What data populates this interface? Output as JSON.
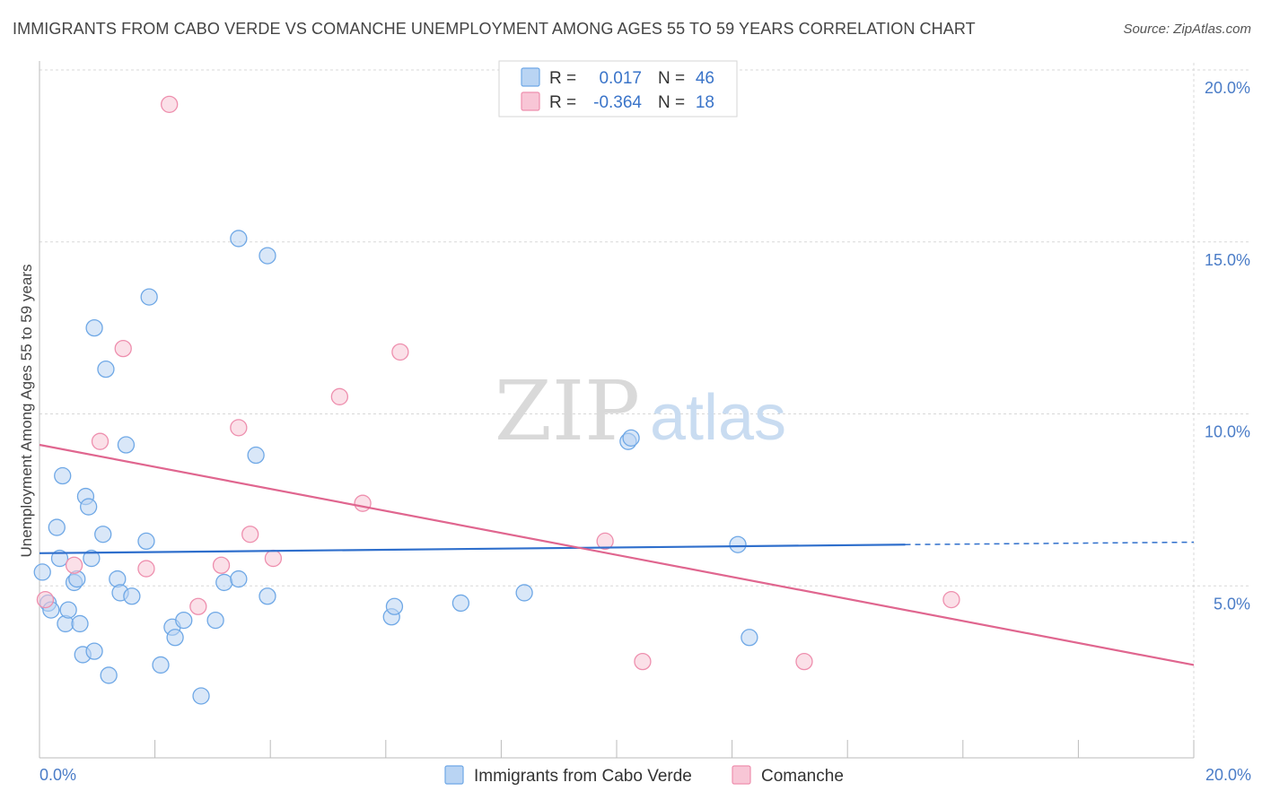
{
  "header": {
    "title": "IMMIGRANTS FROM CABO VERDE VS COMANCHE UNEMPLOYMENT AMONG AGES 55 TO 59 YEARS CORRELATION CHART",
    "source": "Source: ZipAtlas.com"
  },
  "colors": {
    "blue": "#6fa8e6",
    "blue_fill": "#b9d4f3",
    "blue_line": "#2f6fcc",
    "pink": "#ee8fae",
    "pink_fill": "#f8c6d6",
    "pink_line": "#e0668f",
    "tick": "#4a7cc7",
    "grid": "#d8d8d8"
  },
  "legend": {
    "r_label": "R =",
    "n_label": "N =",
    "series": [
      {
        "r": "0.017",
        "n": "46"
      },
      {
        "r": "-0.364",
        "n": "18"
      }
    ]
  },
  "watermark": {
    "zip": "ZIP",
    "atlas": "atlas"
  },
  "chart_data": {
    "type": "scatter",
    "title": "IMMIGRANTS FROM CABO VERDE VS COMANCHE UNEMPLOYMENT AMONG AGES 55 TO 59 YEARS CORRELATION CHART",
    "xlabel": "",
    "ylabel": "Unemployment Among Ages 55 to 59 years",
    "xlim": [
      0,
      20
    ],
    "ylim": [
      0,
      20
    ],
    "x_tick_labels": {
      "min": "0.0%",
      "max": "20.0%"
    },
    "y_ticks": [
      {
        "value": 5,
        "label": "5.0%"
      },
      {
        "value": 10,
        "label": "10.0%"
      },
      {
        "value": 15,
        "label": "15.0%"
      },
      {
        "value": 20,
        "label": "20.0%"
      }
    ],
    "series": [
      {
        "name": "Immigrants from Cabo Verde",
        "color": "blue",
        "trend": {
          "x0": 0,
          "y0": 5.95,
          "x1": 15.0,
          "y1": 6.2,
          "dash_to": 20.0,
          "dash_y": 6.27
        },
        "points": [
          [
            0.05,
            5.4
          ],
          [
            0.15,
            4.5
          ],
          [
            0.2,
            4.3
          ],
          [
            0.35,
            5.8
          ],
          [
            0.4,
            8.2
          ],
          [
            0.3,
            6.7
          ],
          [
            0.45,
            3.9
          ],
          [
            0.5,
            4.3
          ],
          [
            0.6,
            5.1
          ],
          [
            0.65,
            5.2
          ],
          [
            0.7,
            3.9
          ],
          [
            0.75,
            3.0
          ],
          [
            0.8,
            7.6
          ],
          [
            0.85,
            7.3
          ],
          [
            0.9,
            5.8
          ],
          [
            0.95,
            3.1
          ],
          [
            0.95,
            12.5
          ],
          [
            1.1,
            6.5
          ],
          [
            1.15,
            11.3
          ],
          [
            1.2,
            2.4
          ],
          [
            1.35,
            5.2
          ],
          [
            1.4,
            4.8
          ],
          [
            1.5,
            9.1
          ],
          [
            1.6,
            4.7
          ],
          [
            1.85,
            6.3
          ],
          [
            1.9,
            13.4
          ],
          [
            2.1,
            2.7
          ],
          [
            2.3,
            3.8
          ],
          [
            2.35,
            3.5
          ],
          [
            2.5,
            4.0
          ],
          [
            2.8,
            1.8
          ],
          [
            3.05,
            4.0
          ],
          [
            3.2,
            5.1
          ],
          [
            3.45,
            5.2
          ],
          [
            3.45,
            15.1
          ],
          [
            3.75,
            8.8
          ],
          [
            3.95,
            4.7
          ],
          [
            3.95,
            14.6
          ],
          [
            6.1,
            4.1
          ],
          [
            6.15,
            4.4
          ],
          [
            7.3,
            4.5
          ],
          [
            8.4,
            4.8
          ],
          [
            10.2,
            9.2
          ],
          [
            10.25,
            9.3
          ],
          [
            12.1,
            6.2
          ],
          [
            12.3,
            3.5
          ]
        ]
      },
      {
        "name": "Comanche",
        "color": "pink",
        "trend": {
          "x0": 0,
          "y0": 9.1,
          "x1": 20.0,
          "y1": 2.7
        },
        "points": [
          [
            0.1,
            4.6
          ],
          [
            0.6,
            5.6
          ],
          [
            1.05,
            9.2
          ],
          [
            1.45,
            11.9
          ],
          [
            1.85,
            5.5
          ],
          [
            2.25,
            19.0
          ],
          [
            2.75,
            4.4
          ],
          [
            3.15,
            5.6
          ],
          [
            3.45,
            9.6
          ],
          [
            3.65,
            6.5
          ],
          [
            4.05,
            5.8
          ],
          [
            5.2,
            10.5
          ],
          [
            5.6,
            7.4
          ],
          [
            6.25,
            11.8
          ],
          [
            9.8,
            6.3
          ],
          [
            10.45,
            2.8
          ],
          [
            13.25,
            2.8
          ],
          [
            15.8,
            4.6
          ]
        ]
      }
    ]
  },
  "bottom_legend": [
    {
      "label": "Immigrants from Cabo Verde"
    },
    {
      "label": "Comanche"
    }
  ]
}
